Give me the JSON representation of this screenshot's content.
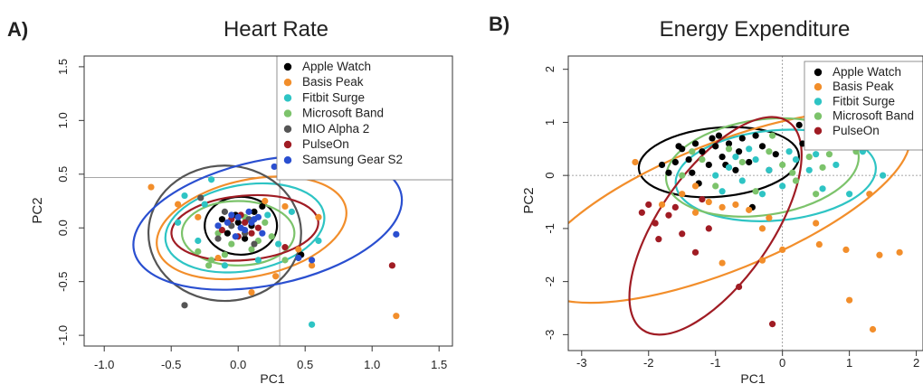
{
  "colors": {
    "Apple Watch": "#000000",
    "Basis Peak": "#f28e2b",
    "Fitbit Surge": "#2ec4c4",
    "Microsoft Band": "#7cc36b",
    "MIO Alpha 2": "#555555",
    "PulseOn": "#a01c24",
    "Samsung Gear S2": "#2a4fd0"
  },
  "chart_data": [
    {
      "type": "scatter",
      "panel_label": "A)",
      "title": "Heart Rate",
      "xlabel": "PC1",
      "ylabel": "PC2",
      "xlim": [
        -1.15,
        1.6
      ],
      "ylim": [
        -1.1,
        1.6
      ],
      "xticks": [
        "-1.0",
        "-0.5",
        "0.0",
        "0.5",
        "1.0",
        "1.5"
      ],
      "xtick_values": [
        -1.0,
        -0.5,
        0.0,
        0.5,
        1.0,
        1.5
      ],
      "yticks": [
        "-1.0",
        "-0.5",
        "0.0",
        "0.5",
        "1.0",
        "1.5"
      ],
      "ytick_values": [
        -1.0,
        -0.5,
        0.0,
        0.5,
        1.0,
        1.5
      ],
      "reference_lines": {
        "vertical_x": 0.31,
        "horizontal_y": 0.47
      },
      "legend_position": "top-right",
      "legend": [
        "Apple Watch",
        "Basis Peak",
        "Fitbit Surge",
        "Microsoft Band",
        "MIO Alpha 2",
        "PulseOn",
        "Samsung Gear S2"
      ],
      "series": [
        {
          "name": "Apple Watch",
          "ellipse": {
            "cx": 0.02,
            "cy": 0.02,
            "rx": 0.27,
            "ry": 0.27,
            "angle": 0
          },
          "points": [
            [
              0.0,
              0.05
            ],
            [
              0.12,
              0.15
            ],
            [
              -0.08,
              -0.05
            ],
            [
              0.05,
              -0.1
            ],
            [
              0.18,
              0.2
            ],
            [
              -0.12,
              0.08
            ],
            [
              0.1,
              0.02
            ],
            [
              0.47,
              -0.25
            ],
            [
              -0.02,
              0.12
            ]
          ]
        },
        {
          "name": "Basis Peak",
          "ellipse": {
            "cx": 0.1,
            "cy": 0.0,
            "rx": 0.72,
            "ry": 0.45,
            "angle": -12
          },
          "points": [
            [
              -0.65,
              0.38
            ],
            [
              -0.45,
              0.22
            ],
            [
              1.18,
              -0.82
            ],
            [
              0.1,
              -0.6
            ],
            [
              0.45,
              -0.2
            ],
            [
              0.35,
              0.2
            ],
            [
              -0.3,
              0.1
            ],
            [
              0.2,
              0.25
            ],
            [
              0.55,
              -0.35
            ],
            [
              -0.15,
              -0.28
            ],
            [
              0.6,
              0.1
            ],
            [
              0.28,
              -0.45
            ]
          ]
        },
        {
          "name": "Fitbit Surge",
          "ellipse": {
            "cx": 0.05,
            "cy": 0.0,
            "rx": 0.6,
            "ry": 0.4,
            "angle": -10
          },
          "points": [
            [
              0.55,
              -0.9
            ],
            [
              -0.45,
              0.05
            ],
            [
              -0.4,
              0.3
            ],
            [
              -0.25,
              0.22
            ],
            [
              0.3,
              -0.15
            ],
            [
              0.4,
              0.15
            ],
            [
              -0.1,
              -0.35
            ],
            [
              0.15,
              -0.3
            ],
            [
              -0.3,
              -0.12
            ],
            [
              0.22,
              0.12
            ],
            [
              0.6,
              -0.12
            ],
            [
              -0.2,
              0.45
            ]
          ]
        },
        {
          "name": "Microsoft Band",
          "ellipse": {
            "cx": 0.0,
            "cy": -0.05,
            "rx": 0.42,
            "ry": 0.3,
            "angle": 0
          },
          "points": [
            [
              -0.2,
              -0.3
            ],
            [
              -0.22,
              -0.35
            ],
            [
              0.1,
              -0.2
            ],
            [
              -0.05,
              -0.15
            ],
            [
              0.25,
              -0.08
            ],
            [
              -0.15,
              -0.05
            ],
            [
              0.35,
              -0.3
            ],
            [
              -0.3,
              -0.22
            ],
            [
              0.05,
              0.1
            ],
            [
              0.15,
              -0.12
            ],
            [
              -0.1,
              -0.25
            ],
            [
              0.2,
              0.05
            ]
          ]
        },
        {
          "name": "MIO Alpha 2",
          "ellipse": {
            "cx": -0.1,
            "cy": -0.05,
            "rx": 0.57,
            "ry": 0.63,
            "angle": 0
          },
          "points": [
            [
              -0.4,
              -0.72
            ],
            [
              -0.28,
              0.28
            ],
            [
              0.05,
              -0.05
            ],
            [
              -0.05,
              0.02
            ],
            [
              0.08,
              0.08
            ],
            [
              -0.15,
              -0.1
            ],
            [
              0.12,
              -0.15
            ],
            [
              -0.1,
              0.15
            ]
          ]
        },
        {
          "name": "PulseOn",
          "ellipse": {
            "cx": 0.05,
            "cy": 0.0,
            "rx": 0.55,
            "ry": 0.3,
            "angle": -5
          },
          "points": [
            [
              1.15,
              -0.35
            ],
            [
              0.05,
              0.05
            ],
            [
              0.0,
              -0.08
            ],
            [
              0.1,
              -0.05
            ],
            [
              -0.05,
              0.08
            ],
            [
              0.15,
              0.0
            ],
            [
              -0.12,
              -0.02
            ],
            [
              0.02,
              0.12
            ],
            [
              0.35,
              -0.18
            ]
          ]
        },
        {
          "name": "Samsung Gear S2",
          "ellipse": {
            "cx": 0.22,
            "cy": 0.05,
            "rx": 1.02,
            "ry": 0.58,
            "angle": -12
          },
          "points": [
            [
              1.18,
              -0.06
            ],
            [
              0.27,
              0.57
            ],
            [
              0.0,
              0.1
            ],
            [
              0.05,
              -0.02
            ],
            [
              -0.08,
              0.05
            ],
            [
              0.12,
              0.08
            ],
            [
              -0.02,
              -0.08
            ],
            [
              0.08,
              0.15
            ],
            [
              0.18,
              -0.05
            ],
            [
              -0.15,
              0.02
            ],
            [
              0.02,
              0.0
            ],
            [
              0.1,
              0.05
            ],
            [
              -0.05,
              0.12
            ],
            [
              0.15,
              0.1
            ],
            [
              0.45,
              -0.28
            ],
            [
              0.55,
              -0.3
            ]
          ]
        }
      ]
    },
    {
      "type": "scatter",
      "panel_label": "B)",
      "title": "Energy Expenditure",
      "xlabel": "PC1",
      "ylabel": "PC2",
      "xlim": [
        -3.2,
        2.1
      ],
      "ylim": [
        -3.3,
        2.25
      ],
      "xticks": [
        "-3",
        "-2",
        "-1",
        "0",
        "1",
        "2"
      ],
      "xtick_values": [
        -3,
        -2,
        -1,
        0,
        1,
        2
      ],
      "yticks": [
        "-3",
        "-2",
        "-1",
        "0",
        "1",
        "2"
      ],
      "ytick_values": [
        -3,
        -2,
        -1,
        0,
        1,
        2
      ],
      "reference_lines": {
        "vertical_x": 0.0,
        "horizontal_y": 0.0
      },
      "legend_position": "top-right",
      "legend": [
        "Apple Watch",
        "Basis Peak",
        "Fitbit Surge",
        "Microsoft Band",
        "PulseOn"
      ],
      "series": [
        {
          "name": "Apple Watch",
          "ellipse": {
            "cx": -0.95,
            "cy": 0.25,
            "rx": 1.2,
            "ry": 0.65,
            "angle": -5
          },
          "points": [
            [
              -1.8,
              0.2
            ],
            [
              -1.7,
              0.05
            ],
            [
              -1.5,
              0.5
            ],
            [
              -1.4,
              0.3
            ],
            [
              -1.3,
              0.6
            ],
            [
              -1.2,
              0.45
            ],
            [
              -1.1,
              0.2
            ],
            [
              -1.0,
              0.55
            ],
            [
              -0.9,
              0.35
            ],
            [
              -0.8,
              0.6
            ],
            [
              -0.7,
              0.1
            ],
            [
              -0.6,
              0.7
            ],
            [
              -0.5,
              0.25
            ],
            [
              -0.4,
              0.75
            ],
            [
              -0.3,
              0.55
            ],
            [
              -0.2,
              0.1
            ],
            [
              -0.1,
              0.4
            ],
            [
              0.25,
              0.95
            ],
            [
              0.3,
              0.6
            ],
            [
              -1.6,
              0.25
            ],
            [
              -1.35,
              0.05
            ],
            [
              -0.95,
              0.75
            ],
            [
              -0.65,
              0.45
            ],
            [
              -1.25,
              -0.15
            ],
            [
              -0.45,
              -0.6
            ],
            [
              -1.55,
              0.55
            ],
            [
              -0.85,
              0.2
            ],
            [
              -1.05,
              0.7
            ]
          ]
        },
        {
          "name": "Basis Peak",
          "ellipse": {
            "cx": -0.9,
            "cy": -0.6,
            "rx": 3.0,
            "ry": 1.2,
            "angle": -22
          },
          "points": [
            [
              -2.2,
              0.25
            ],
            [
              -1.8,
              -0.55
            ],
            [
              -1.5,
              -0.35
            ],
            [
              -1.3,
              -0.7
            ],
            [
              -1.1,
              -0.5
            ],
            [
              -0.9,
              -0.6
            ],
            [
              -0.7,
              -0.55
            ],
            [
              -0.5,
              -0.65
            ],
            [
              -0.3,
              -1.0
            ],
            [
              0.0,
              -1.4
            ],
            [
              0.55,
              -1.3
            ],
            [
              1.0,
              -2.35
            ],
            [
              1.35,
              -2.9
            ],
            [
              1.75,
              -1.45
            ],
            [
              1.45,
              -1.5
            ],
            [
              0.95,
              -1.4
            ],
            [
              -0.3,
              -1.6
            ],
            [
              -0.9,
              -1.65
            ],
            [
              -1.3,
              -0.2
            ],
            [
              0.5,
              -0.9
            ],
            [
              1.3,
              -0.35
            ],
            [
              -0.2,
              -0.8
            ]
          ]
        },
        {
          "name": "Fitbit Surge",
          "ellipse": {
            "cx": -0.1,
            "cy": 0.0,
            "rx": 1.5,
            "ry": 0.85,
            "angle": -5
          },
          "points": [
            [
              -1.0,
              0.0
            ],
            [
              -0.8,
              0.15
            ],
            [
              -0.6,
              -0.1
            ],
            [
              -0.4,
              0.3
            ],
            [
              -0.2,
              0.1
            ],
            [
              0.0,
              -0.2
            ],
            [
              0.2,
              0.3
            ],
            [
              0.4,
              0.1
            ],
            [
              0.6,
              -0.25
            ],
            [
              0.8,
              0.2
            ],
            [
              1.0,
              -0.35
            ],
            [
              1.5,
              0.0
            ],
            [
              -0.7,
              0.35
            ],
            [
              -0.3,
              -0.35
            ],
            [
              0.1,
              0.45
            ],
            [
              0.5,
              0.4
            ],
            [
              -0.5,
              0.5
            ],
            [
              -0.9,
              -0.3
            ],
            [
              1.2,
              0.45
            ]
          ]
        },
        {
          "name": "Microsoft Band",
          "ellipse": {
            "cx": -0.3,
            "cy": 0.15,
            "rx": 1.45,
            "ry": 0.9,
            "angle": -8
          },
          "points": [
            [
              -1.5,
              0.0
            ],
            [
              -1.2,
              0.3
            ],
            [
              -1.0,
              -0.2
            ],
            [
              -0.8,
              0.5
            ],
            [
              -0.6,
              0.25
            ],
            [
              -0.4,
              -0.3
            ],
            [
              -0.2,
              0.45
            ],
            [
              0.0,
              0.2
            ],
            [
              0.2,
              -0.1
            ],
            [
              0.4,
              0.35
            ],
            [
              0.6,
              0.15
            ],
            [
              0.7,
              0.4
            ],
            [
              1.1,
              0.45
            ],
            [
              0.95,
              1.15
            ],
            [
              -0.15,
              0.75
            ],
            [
              -1.35,
              0.45
            ],
            [
              0.15,
              0.05
            ],
            [
              0.5,
              -0.35
            ]
          ]
        },
        {
          "name": "PulseOn",
          "ellipse": {
            "cx": -1.0,
            "cy": -0.95,
            "rx": 1.9,
            "ry": 1.05,
            "angle": -55
          },
          "points": [
            [
              -2.1,
              -0.7
            ],
            [
              -1.9,
              -0.9
            ],
            [
              -1.85,
              -1.2
            ],
            [
              -1.7,
              -0.75
            ],
            [
              -1.5,
              -1.1
            ],
            [
              -1.3,
              -1.45
            ],
            [
              -1.1,
              -1.0
            ],
            [
              -0.65,
              -2.1
            ],
            [
              -0.15,
              -2.8
            ],
            [
              -1.6,
              -0.6
            ],
            [
              -1.2,
              -0.45
            ],
            [
              -2.0,
              -0.55
            ]
          ]
        }
      ]
    }
  ]
}
